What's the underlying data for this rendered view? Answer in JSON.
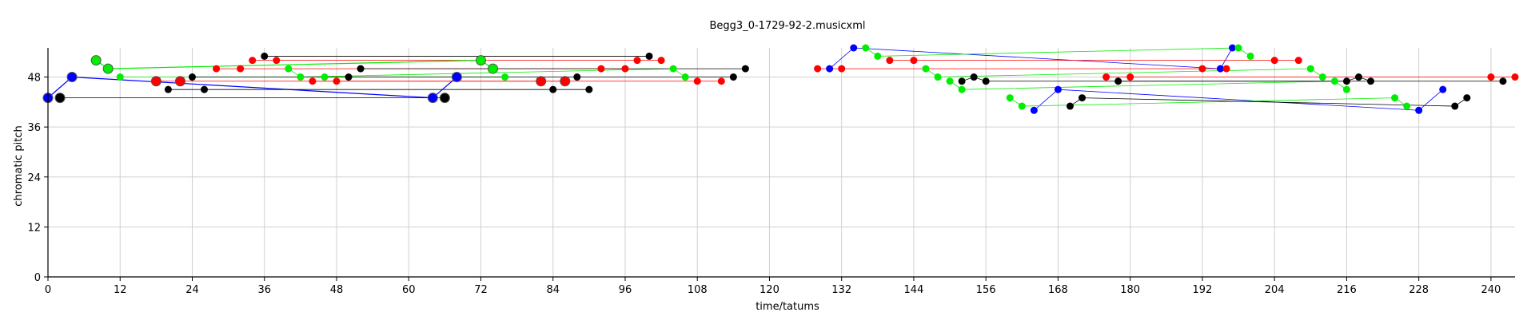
{
  "chart_data": {
    "type": "scatter",
    "title": "Begg3_0-1729-92-2.musicxml",
    "xlabel": "time/tatums",
    "ylabel": "chromatic pitch",
    "xlim": [
      0,
      244
    ],
    "ylim": [
      0,
      55
    ],
    "xticks": [
      0,
      12,
      24,
      36,
      48,
      60,
      72,
      84,
      96,
      108,
      120,
      132,
      144,
      156,
      168,
      180,
      192,
      204,
      216,
      228,
      240
    ],
    "yticks": [
      0,
      12,
      24,
      36,
      48
    ],
    "grid": true,
    "series": [
      {
        "color": "#0000ff",
        "points": [
          [
            0,
            43
          ],
          [
            4,
            48
          ],
          [
            64,
            43
          ],
          [
            68,
            48
          ],
          [
            130,
            50
          ],
          [
            134,
            55
          ],
          [
            195,
            50
          ],
          [
            197,
            55
          ],
          [
            164,
            40
          ],
          [
            168,
            45
          ],
          [
            228,
            40
          ],
          [
            232,
            45
          ]
        ],
        "big": [
          [
            0,
            43
          ],
          [
            4,
            48
          ],
          [
            64,
            43
          ],
          [
            68,
            48
          ]
        ]
      },
      {
        "color": "#ff0000",
        "points": [
          [
            18,
            47
          ],
          [
            22,
            47
          ],
          [
            28,
            50
          ],
          [
            32,
            50
          ],
          [
            34,
            52
          ],
          [
            38,
            52
          ],
          [
            44,
            47
          ],
          [
            48,
            47
          ],
          [
            82,
            47
          ],
          [
            86,
            47
          ],
          [
            92,
            50
          ],
          [
            96,
            50
          ],
          [
            98,
            52
          ],
          [
            102,
            52
          ],
          [
            108,
            47
          ],
          [
            112,
            47
          ],
          [
            128,
            50
          ],
          [
            132,
            50
          ],
          [
            140,
            52
          ],
          [
            144,
            52
          ],
          [
            176,
            48
          ],
          [
            180,
            48
          ],
          [
            192,
            50
          ],
          [
            196,
            50
          ],
          [
            204,
            52
          ],
          [
            208,
            52
          ],
          [
            240,
            48
          ],
          [
            244,
            48
          ]
        ],
        "big": [
          [
            18,
            47
          ],
          [
            22,
            47
          ],
          [
            82,
            47
          ],
          [
            86,
            47
          ]
        ]
      },
      {
        "color": "#00ee00",
        "points": [
          [
            8,
            52
          ],
          [
            10,
            50
          ],
          [
            12,
            48
          ],
          [
            40,
            50
          ],
          [
            42,
            48
          ],
          [
            46,
            48
          ],
          [
            72,
            52
          ],
          [
            74,
            50
          ],
          [
            76,
            48
          ],
          [
            104,
            50
          ],
          [
            106,
            48
          ],
          [
            136,
            55
          ],
          [
            138,
            53
          ],
          [
            146,
            50
          ],
          [
            148,
            48
          ],
          [
            150,
            47
          ],
          [
            152,
            45
          ],
          [
            160,
            43
          ],
          [
            162,
            41
          ],
          [
            198,
            55
          ],
          [
            200,
            53
          ],
          [
            210,
            50
          ],
          [
            212,
            48
          ],
          [
            214,
            47
          ],
          [
            216,
            45
          ],
          [
            224,
            43
          ],
          [
            226,
            41
          ]
        ],
        "big": [
          [
            8,
            52
          ],
          [
            10,
            50
          ],
          [
            72,
            52
          ],
          [
            74,
            50
          ]
        ]
      },
      {
        "color": "#000000",
        "points": [
          [
            2,
            43
          ],
          [
            66,
            43
          ],
          [
            20,
            45
          ],
          [
            26,
            45
          ],
          [
            24,
            48
          ],
          [
            50,
            48
          ],
          [
            36,
            53
          ],
          [
            100,
            53
          ],
          [
            52,
            50
          ],
          [
            116,
            50
          ],
          [
            84,
            45
          ],
          [
            90,
            45
          ],
          [
            88,
            48
          ],
          [
            114,
            48
          ],
          [
            152,
            47
          ],
          [
            154,
            48
          ],
          [
            156,
            47
          ],
          [
            170,
            41
          ],
          [
            172,
            43
          ],
          [
            178,
            47
          ],
          [
            216,
            47
          ],
          [
            218,
            48
          ],
          [
            220,
            47
          ],
          [
            234,
            41
          ],
          [
            236,
            43
          ],
          [
            242,
            47
          ]
        ],
        "big": [
          [
            2,
            43
          ],
          [
            66,
            43
          ]
        ]
      }
    ],
    "segments": [
      {
        "color": "#0000ff",
        "width": 1.2,
        "points": [
          [
            0,
            43
          ],
          [
            4,
            48
          ],
          [
            64,
            43
          ],
          [
            68,
            48
          ]
        ]
      },
      {
        "color": "#0000ff",
        "width": 0.8,
        "points": [
          [
            130,
            50
          ],
          [
            134,
            55
          ],
          [
            195,
            50
          ],
          [
            197,
            55
          ]
        ]
      },
      {
        "color": "#0000ff",
        "width": 0.8,
        "points": [
          [
            164,
            40
          ],
          [
            168,
            45
          ],
          [
            228,
            40
          ],
          [
            232,
            45
          ]
        ]
      },
      {
        "color": "#ff0000",
        "width": 0.8,
        "points": [
          [
            18,
            47
          ],
          [
            22,
            47
          ],
          [
            82,
            47
          ],
          [
            86,
            47
          ]
        ]
      },
      {
        "color": "#ff0000",
        "width": 0.8,
        "points": [
          [
            28,
            50
          ],
          [
            32,
            50
          ],
          [
            92,
            50
          ],
          [
            96,
            50
          ]
        ]
      },
      {
        "color": "#ff0000",
        "width": 0.8,
        "points": [
          [
            34,
            52
          ],
          [
            38,
            52
          ],
          [
            98,
            52
          ],
          [
            102,
            52
          ]
        ]
      },
      {
        "color": "#ff0000",
        "width": 0.8,
        "points": [
          [
            44,
            47
          ],
          [
            48,
            47
          ],
          [
            108,
            47
          ],
          [
            112,
            47
          ]
        ]
      },
      {
        "color": "#ff0000",
        "width": 0.8,
        "points": [
          [
            128,
            50
          ],
          [
            132,
            50
          ],
          [
            192,
            50
          ],
          [
            196,
            50
          ]
        ]
      },
      {
        "color": "#ff0000",
        "width": 0.8,
        "points": [
          [
            140,
            52
          ],
          [
            144,
            52
          ],
          [
            204,
            52
          ],
          [
            208,
            52
          ]
        ]
      },
      {
        "color": "#ff0000",
        "width": 0.8,
        "points": [
          [
            176,
            48
          ],
          [
            180,
            48
          ],
          [
            240,
            48
          ],
          [
            244,
            48
          ]
        ]
      },
      {
        "color": "#00ee00",
        "width": 1.2,
        "points": [
          [
            8,
            52
          ],
          [
            10,
            50
          ],
          [
            72,
            52
          ],
          [
            74,
            50
          ]
        ]
      },
      {
        "color": "#00ee00",
        "width": 0.8,
        "points": [
          [
            12,
            48
          ],
          [
            76,
            48
          ]
        ]
      },
      {
        "color": "#00ee00",
        "width": 0.8,
        "points": [
          [
            40,
            50
          ],
          [
            42,
            48
          ],
          [
            104,
            50
          ],
          [
            106,
            48
          ]
        ]
      },
      {
        "color": "#00ee00",
        "width": 0.8,
        "points": [
          [
            46,
            48
          ],
          [
            76,
            48
          ]
        ]
      },
      {
        "color": "#00ee00",
        "width": 0.8,
        "points": [
          [
            136,
            55
          ],
          [
            138,
            53
          ],
          [
            198,
            55
          ],
          [
            200,
            53
          ]
        ]
      },
      {
        "color": "#00ee00",
        "width": 0.8,
        "points": [
          [
            146,
            50
          ],
          [
            148,
            48
          ],
          [
            210,
            50
          ],
          [
            212,
            48
          ]
        ]
      },
      {
        "color": "#00ee00",
        "width": 0.8,
        "points": [
          [
            150,
            47
          ],
          [
            152,
            45
          ],
          [
            214,
            47
          ],
          [
            216,
            45
          ]
        ]
      },
      {
        "color": "#00ee00",
        "width": 0.8,
        "points": [
          [
            160,
            43
          ],
          [
            162,
            41
          ],
          [
            224,
            43
          ],
          [
            226,
            41
          ]
        ]
      },
      {
        "color": "#000000",
        "width": 0.8,
        "points": [
          [
            2,
            43
          ],
          [
            66,
            43
          ]
        ]
      },
      {
        "color": "#000000",
        "width": 0.8,
        "points": [
          [
            20,
            45
          ],
          [
            26,
            45
          ],
          [
            84,
            45
          ],
          [
            90,
            45
          ]
        ]
      },
      {
        "color": "#000000",
        "width": 0.8,
        "points": [
          [
            24,
            48
          ],
          [
            50,
            48
          ],
          [
            88,
            48
          ],
          [
            114,
            48
          ]
        ]
      },
      {
        "color": "#000000",
        "width": 0.8,
        "points": [
          [
            36,
            53
          ],
          [
            100,
            53
          ]
        ]
      },
      {
        "color": "#000000",
        "width": 0.8,
        "points": [
          [
            52,
            50
          ],
          [
            116,
            50
          ]
        ]
      },
      {
        "color": "#000000",
        "width": 0.8,
        "points": [
          [
            152,
            47
          ],
          [
            154,
            48
          ],
          [
            156,
            47
          ],
          [
            216,
            47
          ],
          [
            218,
            48
          ],
          [
            220,
            47
          ]
        ]
      },
      {
        "color": "#000000",
        "width": 0.8,
        "points": [
          [
            170,
            41
          ],
          [
            172,
            43
          ],
          [
            234,
            41
          ],
          [
            236,
            43
          ]
        ]
      },
      {
        "color": "#000000",
        "width": 0.8,
        "points": [
          [
            178,
            47
          ],
          [
            242,
            47
          ]
        ]
      }
    ]
  }
}
